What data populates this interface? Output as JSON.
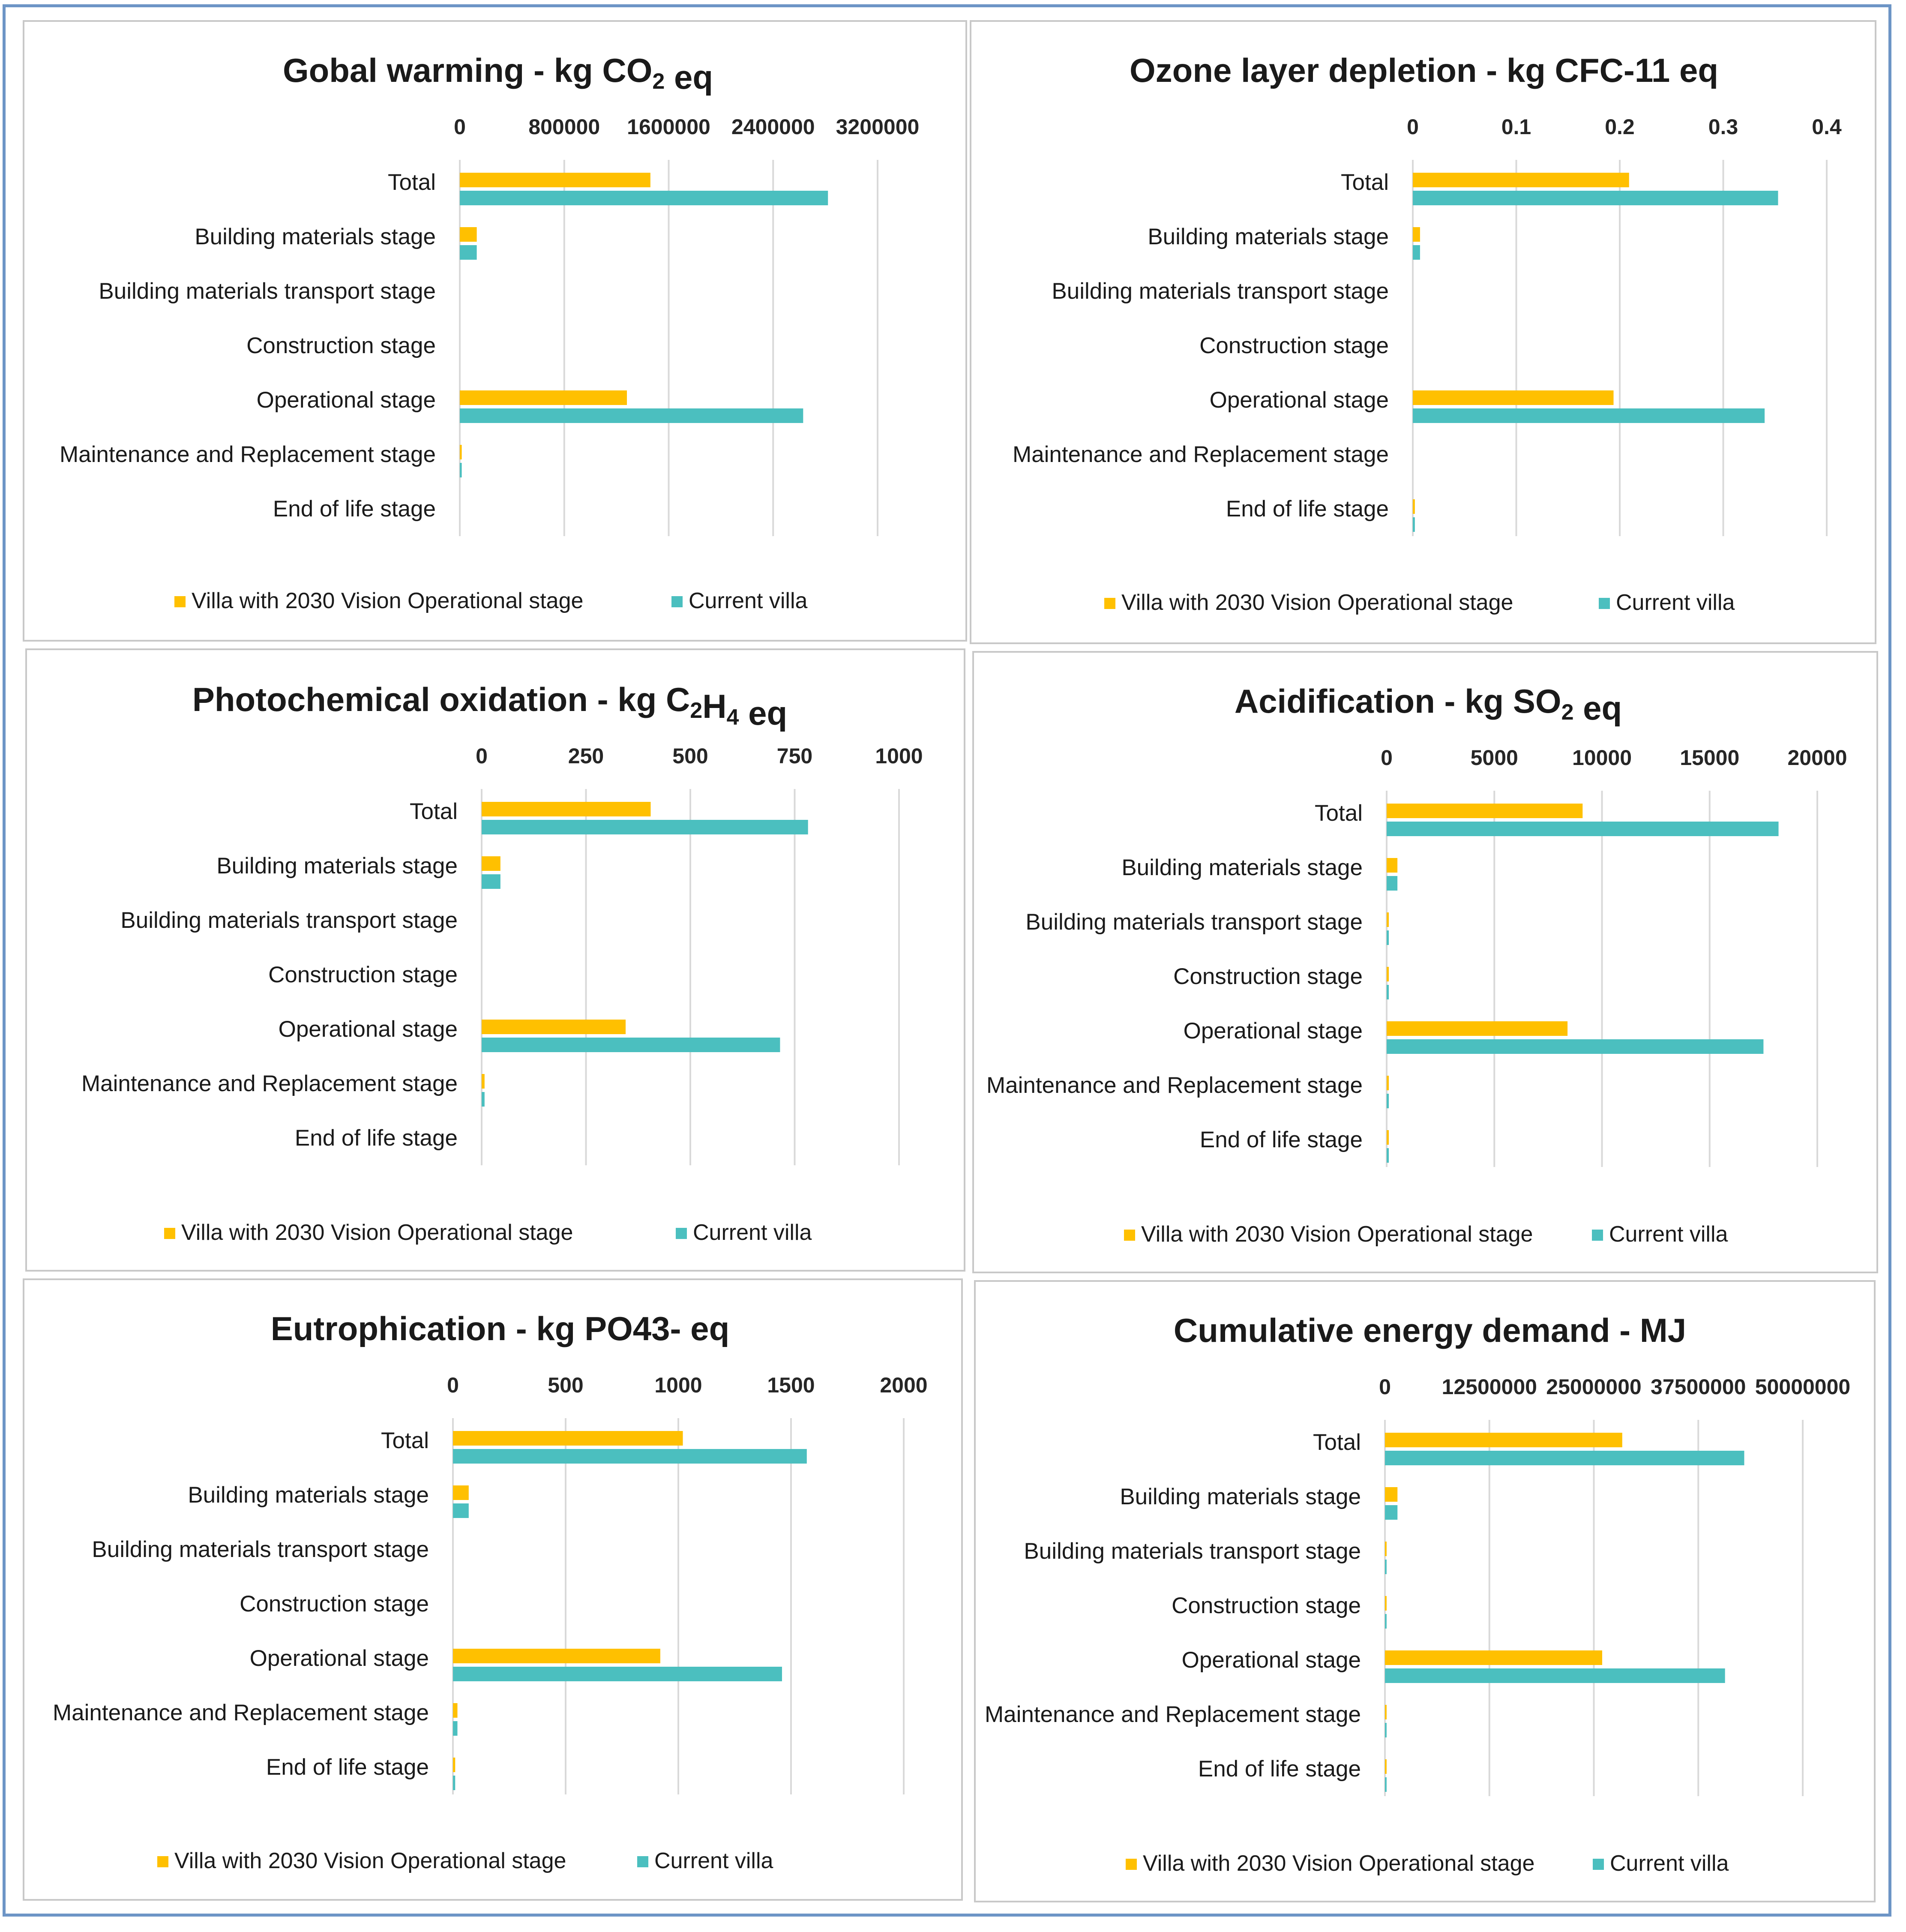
{
  "series_names": [
    "Villa with 2030 Vision Operational stage",
    "Current villa"
  ],
  "colors": {
    "vision": "#ffc000",
    "current": "#4bbfbf"
  },
  "categories": [
    "Total",
    "Building materials stage",
    "Building materials transport stage",
    "Construction stage",
    "Operational stage",
    "Maintenance and Replacement stage",
    "End of life stage"
  ],
  "chart_data": [
    {
      "type": "bar",
      "orientation": "horizontal",
      "title_main": "Gobal warming - kg CO",
      "title_sub": "2",
      "title_tail": " eq",
      "xlim": [
        0,
        3200000
      ],
      "ticks": [
        0,
        800000,
        1600000,
        2400000,
        3200000
      ],
      "tick_labels": [
        "0",
        "800000",
        "1600000",
        "2400000",
        "3200000"
      ],
      "categories": [
        "Total",
        "Building materials stage",
        "Building materials transport stage",
        "Construction stage",
        "Operational stage",
        "Maintenance and Replacement stage",
        "End of life stage"
      ],
      "series": [
        {
          "name": "Villa with 2030 Vision Operational stage",
          "values": [
            1460000,
            130000,
            0,
            0,
            1280000,
            15000,
            0
          ]
        },
        {
          "name": "Current villa",
          "values": [
            2820000,
            130000,
            0,
            0,
            2630000,
            15000,
            0
          ]
        }
      ]
    },
    {
      "type": "bar",
      "orientation": "horizontal",
      "title_main": "Ozone layer depletion - kg CFC-11 eq",
      "title_sub": "",
      "title_tail": "",
      "xlim": [
        0,
        0.4
      ],
      "ticks": [
        0,
        0.1,
        0.2,
        0.3,
        0.4
      ],
      "tick_labels": [
        "0",
        "0.1",
        "0.2",
        "0.3",
        "0.4"
      ],
      "categories": [
        "Total",
        "Building materials stage",
        "Building materials transport stage",
        "Construction stage",
        "Operational stage",
        "Maintenance and Replacement stage",
        "End of life stage"
      ],
      "series": [
        {
          "name": "Villa with 2030 Vision Operational stage",
          "values": [
            0.209,
            0.007,
            0,
            0,
            0.194,
            0,
            0.002
          ]
        },
        {
          "name": "Current villa",
          "values": [
            0.353,
            0.007,
            0,
            0,
            0.34,
            0,
            0.002
          ]
        }
      ]
    },
    {
      "type": "bar",
      "orientation": "horizontal",
      "title_main": "Photochemical oxidation - kg C",
      "title_sub": "2",
      "title_mid": "H",
      "title_sub2": "4",
      "title_tail": " eq",
      "xlim": [
        0,
        1000
      ],
      "ticks": [
        0,
        250,
        500,
        750,
        1000
      ],
      "tick_labels": [
        "0",
        "250",
        "500",
        "750",
        "1000"
      ],
      "categories": [
        "Total",
        "Building materials stage",
        "Building materials transport stage",
        "Construction stage",
        "Operational stage",
        "Maintenance and Replacement stage",
        "End of life stage"
      ],
      "series": [
        {
          "name": "Villa with 2030 Vision Operational stage",
          "values": [
            405,
            45,
            0,
            0,
            345,
            7,
            0
          ]
        },
        {
          "name": "Current villa",
          "values": [
            782,
            45,
            0,
            0,
            715,
            7,
            0
          ]
        }
      ]
    },
    {
      "type": "bar",
      "orientation": "horizontal",
      "title_main": "Acidification - kg SO",
      "title_sub": "2",
      "title_tail": " eq",
      "xlim": [
        0,
        20000
      ],
      "ticks": [
        0,
        5000,
        10000,
        15000,
        20000
      ],
      "tick_labels": [
        "0",
        "5000",
        "10000",
        "15000",
        "20000"
      ],
      "categories": [
        "Total",
        "Building materials stage",
        "Building materials transport stage",
        "Construction stage",
        "Operational stage",
        "Maintenance and Replacement stage",
        "End of life stage"
      ],
      "series": [
        {
          "name": "Villa with 2030 Vision Operational stage",
          "values": [
            9100,
            500,
            100,
            100,
            8400,
            100,
            100
          ]
        },
        {
          "name": "Current villa",
          "values": [
            18200,
            500,
            100,
            100,
            17500,
            100,
            100
          ]
        }
      ]
    },
    {
      "type": "bar",
      "orientation": "horizontal",
      "title_main": "Eutrophication - kg PO43- eq",
      "title_sub": "",
      "title_tail": "",
      "xlim": [
        0,
        2000
      ],
      "ticks": [
        0,
        500,
        1000,
        1500,
        2000
      ],
      "tick_labels": [
        "0",
        "500",
        "1000",
        "1500",
        "2000"
      ],
      "categories": [
        "Total",
        "Building materials stage",
        "Building materials transport stage",
        "Construction stage",
        "Operational stage",
        "Maintenance and Replacement stage",
        "End of life stage"
      ],
      "series": [
        {
          "name": "Villa with 2030 Vision Operational stage",
          "values": [
            1020,
            70,
            0,
            0,
            920,
            20,
            10
          ]
        },
        {
          "name": "Current villa",
          "values": [
            1570,
            70,
            0,
            0,
            1460,
            20,
            10
          ]
        }
      ]
    },
    {
      "type": "bar",
      "orientation": "horizontal",
      "title_main": "Cumulative energy demand - MJ",
      "title_sub": "",
      "title_tail": "",
      "xlim": [
        0,
        50000000
      ],
      "ticks": [
        0,
        12500000,
        25000000,
        37500000,
        50000000
      ],
      "tick_labels": [
        "0",
        "12500000",
        "25000000",
        "37500000",
        "50000000"
      ],
      "categories": [
        "Total",
        "Building materials stage",
        "Building materials transport stage",
        "Construction stage",
        "Operational stage",
        "Maintenance and Replacement stage",
        "End of life stage"
      ],
      "series": [
        {
          "name": "Villa with 2030 Vision Operational stage",
          "values": [
            28400000,
            1500000,
            200000,
            200000,
            26000000,
            200000,
            200000
          ]
        },
        {
          "name": "Current villa",
          "values": [
            43000000,
            1500000,
            200000,
            200000,
            40700000,
            200000,
            200000
          ]
        }
      ]
    }
  ]
}
